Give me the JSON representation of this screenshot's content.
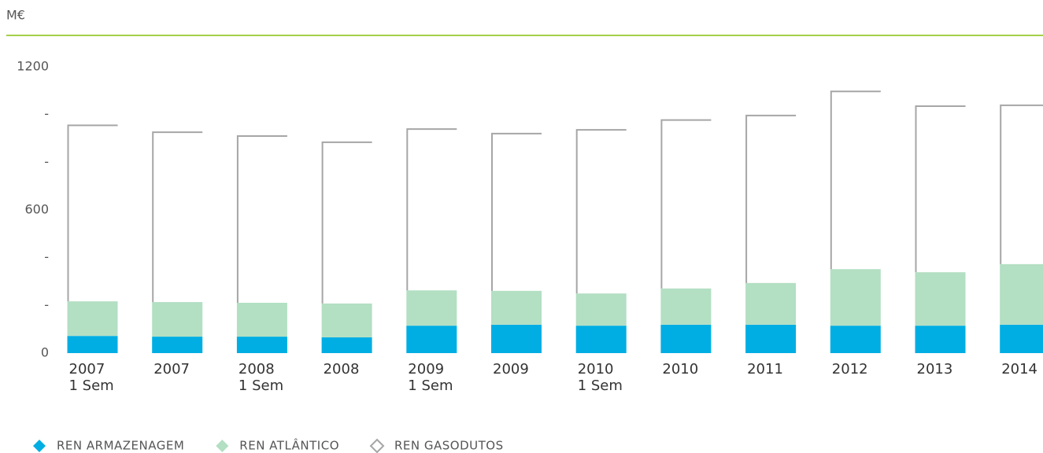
{
  "chart_data": {
    "type": "stacked_bar",
    "unit_label": "M€",
    "categories": [
      "2007\n1 Sem",
      "2007",
      "2008\n1 Sem",
      "2008",
      "2009\n1 Sem",
      "2009",
      "2010\n1 Sem",
      "2010",
      "2011",
      "2012",
      "2013",
      "2014"
    ],
    "series": [
      {
        "name": "REN ARMAZENAGEM",
        "color": "#00aee3",
        "style": "fill",
        "values": [
          72,
          69,
          69,
          66,
          115,
          119,
          115,
          119,
          119,
          115,
          115,
          119
        ]
      },
      {
        "name": "REN ATLÂNTICO",
        "color": "#b3dfc3",
        "style": "fill",
        "values": [
          145,
          145,
          142,
          142,
          148,
          142,
          135,
          152,
          175,
          237,
          224,
          254
        ]
      },
      {
        "name": "REN GASODUTOS",
        "color": "#a6a6a6",
        "style": "outline",
        "values": [
          738,
          712,
          699,
          676,
          676,
          659,
          686,
          706,
          702,
          745,
          696,
          666
        ]
      }
    ],
    "ylim": [
      0,
      1200
    ],
    "yticks": [
      0,
      {
        "value": 200,
        "label": "-"
      },
      {
        "value": 400,
        "label": "-"
      },
      600,
      {
        "value": 800,
        "label": "-"
      },
      {
        "value": 1000,
        "label": "-"
      },
      1200
    ],
    "legend": "bottom-left"
  }
}
